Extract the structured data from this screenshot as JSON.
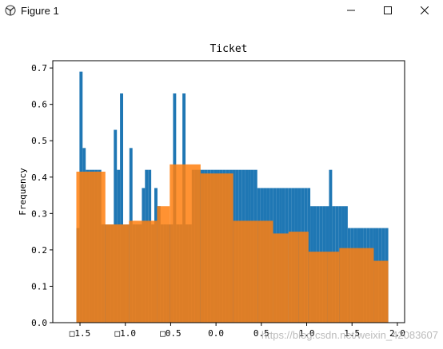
{
  "window": {
    "title": "Figure 1",
    "icon": "matplotlib-figure-icon",
    "controls": {
      "minimize": "minimize-icon",
      "maximize": "maximize-icon",
      "close": "close-icon"
    }
  },
  "chart_data": {
    "type": "bar",
    "title": "Ticket",
    "xlabel": "",
    "ylabel": "Frequency",
    "xlim": [
      -1.8,
      2.08
    ],
    "ylim": [
      0,
      0.72
    ],
    "xticks": [
      -1.5,
      -1.0,
      -0.5,
      0.0,
      0.5,
      1.0,
      1.5,
      2.0
    ],
    "xtick_labels": [
      "□1.5",
      "□1.0",
      "□0.5",
      "0.0",
      "0.5",
      "1.0",
      "1.5",
      "2.0"
    ],
    "yticks": [
      0.0,
      0.1,
      0.2,
      0.3,
      0.4,
      0.5,
      0.6,
      0.7
    ],
    "ytick_labels": [
      "0.0",
      "0.1",
      "0.2",
      "0.3",
      "0.4",
      "0.5",
      "0.6",
      "0.7"
    ],
    "series": [
      {
        "color": "#1f77b4",
        "bin_start": -1.54,
        "bin_end": 1.9,
        "heights": [
          0.26,
          0.69,
          0.48,
          0.42,
          0.42,
          0.42,
          0.42,
          0.42,
          0.27,
          0.27,
          0.27,
          0.27,
          0.53,
          0.42,
          0.63,
          0.27,
          0.27,
          0.48,
          0.27,
          0.27,
          0.27,
          0.37,
          0.42,
          0.42,
          0.27,
          0.37,
          0.32,
          0.27,
          0.27,
          0.27,
          0.27,
          0.63,
          0.27,
          0.27,
          0.63,
          0.27,
          0.27,
          0.42,
          0.42,
          0.42,
          0.42,
          0.42,
          0.42,
          0.42,
          0.42,
          0.42,
          0.42,
          0.42,
          0.42,
          0.42,
          0.42,
          0.42,
          0.42,
          0.42,
          0.42,
          0.42,
          0.42,
          0.42,
          0.37,
          0.37,
          0.37,
          0.37,
          0.37,
          0.37,
          0.37,
          0.37,
          0.37,
          0.37,
          0.37,
          0.37,
          0.37,
          0.37,
          0.37,
          0.37,
          0.37,
          0.32,
          0.32,
          0.32,
          0.32,
          0.32,
          0.32,
          0.42,
          0.32,
          0.32,
          0.32,
          0.32,
          0.32,
          0.26,
          0.26,
          0.26,
          0.26,
          0.26,
          0.26,
          0.26,
          0.26,
          0.26,
          0.26,
          0.26,
          0.26,
          0.26
        ]
      },
      {
        "color": "#ff7f0e",
        "alpha": 0.85,
        "bins": [
          [
            -1.54,
            -1.22,
            0.415
          ],
          [
            -1.22,
            -0.96,
            0.27
          ],
          [
            -0.96,
            -0.65,
            0.28
          ],
          [
            -0.65,
            -0.51,
            0.32
          ],
          [
            -0.51,
            -0.17,
            0.435
          ],
          [
            -0.17,
            0.19,
            0.41
          ],
          [
            0.19,
            0.46,
            0.28
          ],
          [
            0.46,
            0.63,
            0.28
          ],
          [
            0.63,
            0.8,
            0.245
          ],
          [
            0.8,
            0.91,
            0.25
          ],
          [
            0.91,
            1.02,
            0.25
          ],
          [
            1.02,
            1.23,
            0.195
          ],
          [
            1.23,
            1.36,
            0.195
          ],
          [
            1.36,
            1.48,
            0.205
          ],
          [
            1.48,
            1.74,
            0.205
          ],
          [
            1.74,
            1.9,
            0.17
          ]
        ]
      }
    ],
    "grid": false
  },
  "watermark": "https://blog.csdn.net/weixin_42083607"
}
